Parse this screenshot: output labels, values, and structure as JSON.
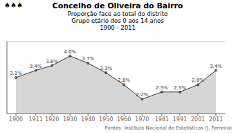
{
  "chart_data": {
    "type": "area",
    "title": "Concelho de Oliveira do Bairro",
    "subtitle": [
      "Proporção face ao total do distrito",
      "Grupo etário dos 0 aos 14 anos",
      "1900 - 2011"
    ],
    "annotations": [
      "♠♠♠",
      "Fontes: Instituto Nacional de Estatísticas",
      "(J. Ferreira)"
    ],
    "x": [
      1900,
      1911,
      1920,
      1930,
      1940,
      1950,
      1960,
      1970,
      1981,
      1991,
      2001,
      2011
    ],
    "values": [
      3.1,
      3.4,
      3.6,
      4.0,
      3.7,
      3.3,
      2.8,
      2.2,
      2.5,
      2.5,
      2.8,
      3.4
    ],
    "value_labels": [
      "3.1%",
      "3.4%",
      "3.6%",
      "4.0%",
      "3.7%",
      "3.3%",
      "2.8%",
      "2.2%",
      "2.5%",
      "2.5%",
      "2.8%",
      "3.4%"
    ],
    "data_labels": true,
    "color": "#333333",
    "marker": "circle",
    "xlim": [
      1895,
      2016
    ],
    "xticks": [
      1900,
      1911,
      1920,
      1930,
      1940,
      1950,
      1960,
      1970,
      1981,
      1991,
      2001,
      2011
    ],
    "ylim": [
      1.6,
      4.6
    ],
    "yticks": [],
    "grid": false,
    "tick_labels": "x"
  }
}
